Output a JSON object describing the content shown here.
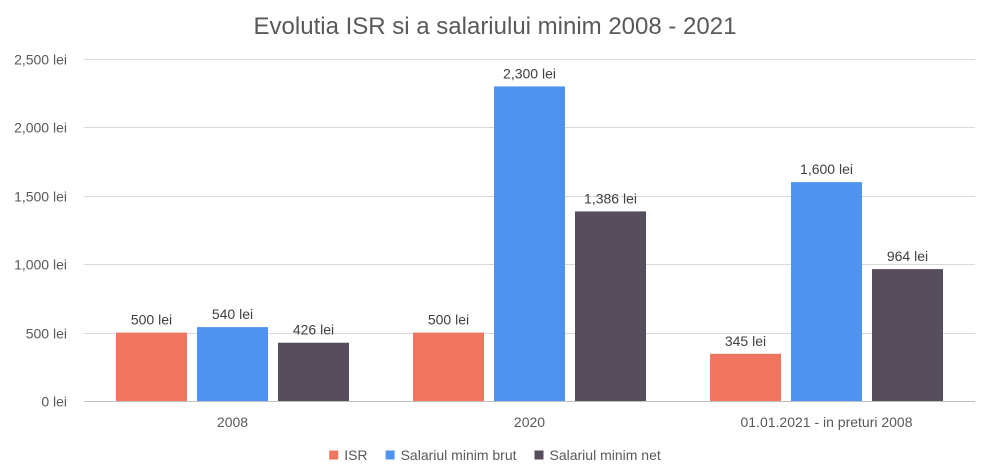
{
  "chart_data": {
    "type": "bar",
    "title": "Evolutia ISR si a salariului minim 2008 - 2021",
    "categories": [
      "2008",
      "2020",
      "01.01.2021 - in preturi 2008"
    ],
    "series": [
      {
        "name": "ISR",
        "values": [
          500,
          500,
          345
        ],
        "color": "#f07662",
        "labels": [
          "500 lei",
          "500 lei",
          "345 lei"
        ]
      },
      {
        "name": "Salariul minim brut",
        "values": [
          540,
          2300,
          1600
        ],
        "color": "#4f93ef",
        "labels": [
          "540 lei",
          "2,300 lei",
          "1,600 lei"
        ]
      },
      {
        "name": "Salariul minim net",
        "values": [
          426,
          1386,
          964
        ],
        "color": "#564e5c",
        "labels": [
          "426 lei",
          "1,386 lei",
          "964 lei"
        ]
      }
    ],
    "ylim": [
      0,
      2500
    ],
    "yticks": [
      0,
      500,
      1000,
      1500,
      2000,
      2500
    ],
    "ytick_labels": [
      "0 lei",
      "500 lei",
      "1,000 lei",
      "1,500 lei",
      "2,000 lei",
      "2,500 lei"
    ],
    "grid": true,
    "legend": "bottom"
  }
}
